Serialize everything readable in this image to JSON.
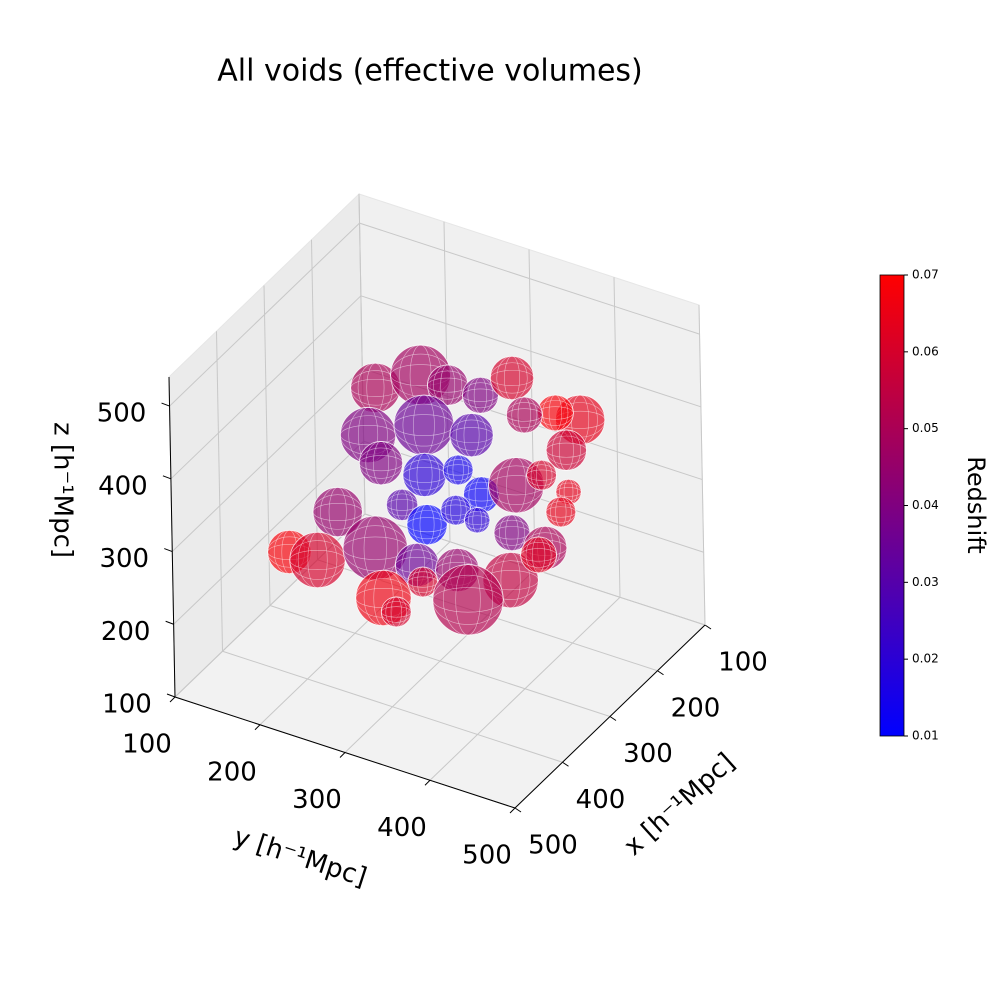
{
  "chart_data": {
    "type": "scatter3d",
    "title": "All voids (effective volumes)",
    "xlabel": "x [h⁻¹Mpc]",
    "ylabel": "y [h⁻¹Mpc]",
    "zlabel": "z [h⁻¹Mpc]",
    "xlim": [
      100,
      500
    ],
    "ylim": [
      100,
      500
    ],
    "zlim": [
      100,
      540
    ],
    "xticks": [
      100,
      200,
      300,
      400,
      500
    ],
    "yticks": [
      100,
      200,
      300,
      400,
      500
    ],
    "zticks": [
      100,
      200,
      300,
      400,
      500
    ],
    "grid": true,
    "points": {
      "x": [
        278,
        233,
        235,
        234,
        189,
        221,
        223,
        281,
        235,
        226,
        165,
        200,
        320,
        316,
        290,
        318,
        284,
        254,
        267,
        345,
        299,
        318,
        279,
        284,
        286,
        226,
        436,
        434,
        384,
        389,
        376,
        364,
        293,
        383,
        336,
        341,
        399,
        230
      ],
      "y": [
        217,
        245,
        278,
        316,
        328,
        426,
        398,
        209,
        249,
        300,
        328,
        397,
        246,
        295,
        320,
        363,
        385,
        398,
        437,
        208,
        258,
        298,
        310,
        338,
        380,
        404,
        202,
        234,
        274,
        326,
        366,
        422,
        423,
        282,
        302,
        358,
        306,
        379
      ],
      "z": [
        430,
        430,
        430,
        430,
        430,
        430,
        430,
        364,
        364,
        364,
        364,
        364,
        364,
        364,
        364,
        364,
        364,
        364,
        364,
        298,
        298,
        298,
        298,
        298,
        298,
        298,
        298,
        298,
        298,
        298,
        298,
        298,
        298,
        232,
        232,
        232,
        232,
        232
      ],
      "radius": [
        33,
        40,
        27,
        24,
        29,
        33,
        24,
        37,
        40,
        29,
        24,
        27,
        29,
        29,
        20,
        24,
        37,
        20,
        17,
        33,
        21,
        27,
        20,
        17,
        24,
        20,
        29,
        37,
        43,
        29,
        29,
        37,
        29,
        37,
        20,
        47,
        20,
        24
      ],
      "redshift": [
        0.05,
        0.048,
        0.045,
        0.04,
        0.06,
        0.064,
        0.068,
        0.04,
        0.035,
        0.03,
        0.05,
        0.058,
        0.04,
        0.02,
        0.015,
        0.012,
        0.048,
        0.06,
        0.064,
        0.045,
        0.03,
        0.01,
        0.018,
        0.02,
        0.04,
        0.064,
        0.068,
        0.06,
        0.045,
        0.035,
        0.045,
        0.055,
        0.05,
        0.066,
        0.06,
        0.052,
        0.06,
        0.062
      ]
    },
    "colorbar": {
      "label": "Redshift",
      "cmap": [
        "#0000ff",
        "#ff0000"
      ],
      "clim": [
        0.01,
        0.07
      ],
      "ticks": [
        0.01,
        0.02,
        0.03,
        0.04,
        0.05,
        0.06,
        0.07
      ]
    }
  }
}
